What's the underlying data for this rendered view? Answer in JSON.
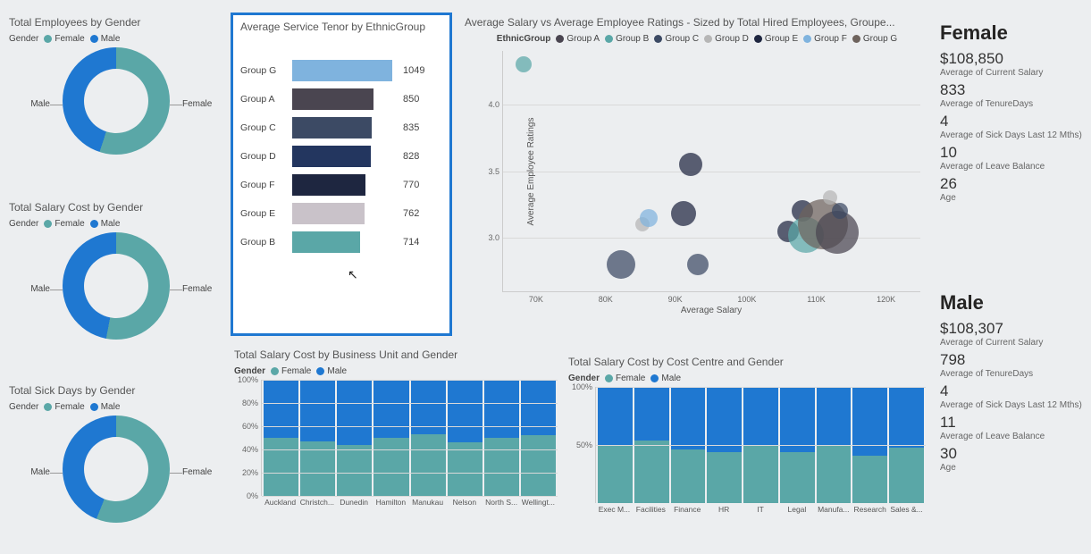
{
  "palette": {
    "female": "#5aa7a7",
    "male": "#1f78d1",
    "selection_border": "#1f78d1",
    "background": "#eceef0",
    "grid": "#d9d9d9"
  },
  "donuts": [
    {
      "id": "emp-gender",
      "title": "Total Employees by Gender",
      "legend_label": "Gender",
      "female_pct": 55,
      "labels": {
        "left": "Male",
        "right": "Female"
      }
    },
    {
      "id": "salary-gender",
      "title": "Total Salary Cost by Gender",
      "legend_label": "Gender",
      "female_pct": 53,
      "labels": {
        "left": "Male",
        "right": "Female"
      }
    },
    {
      "id": "sick-gender",
      "title": "Total Sick Days by Gender",
      "legend_label": "Gender",
      "female_pct": 56,
      "labels": {
        "left": "Male",
        "right": "Female"
      }
    }
  ],
  "tenor_bar": {
    "title": "Average Service Tenor by EthnicGroup",
    "max": 1049,
    "rows": [
      {
        "cat": "Group G",
        "val": 1049,
        "color": "#7fb3de"
      },
      {
        "cat": "Group A",
        "val": 850,
        "color": "#4a4550"
      },
      {
        "cat": "Group C",
        "val": 835,
        "color": "#3c4a64"
      },
      {
        "cat": "Group D",
        "val": 828,
        "color": "#23365f"
      },
      {
        "cat": "Group F",
        "val": 770,
        "color": "#1e2640"
      },
      {
        "cat": "Group E",
        "val": 762,
        "color": "#c9c2c9"
      },
      {
        "cat": "Group B",
        "val": 714,
        "color": "#5aa7a7"
      }
    ]
  },
  "scatter": {
    "title": "Average Salary vs Average Employee Ratings - Sized by Total Hired Employees, Groupe...",
    "legend_label": "EthnicGroup",
    "legend": [
      {
        "label": "Group A",
        "color": "#4a4550"
      },
      {
        "label": "Group B",
        "color": "#5aa7a7"
      },
      {
        "label": "Group C",
        "color": "#3c4a64"
      },
      {
        "label": "Group D",
        "color": "#b6b6b6"
      },
      {
        "label": "Group E",
        "color": "#1e2640"
      },
      {
        "label": "Group F",
        "color": "#7fb3de"
      },
      {
        "label": "Group G",
        "color": "#6e635d"
      }
    ],
    "x": {
      "label": "Average Salary",
      "min": 65000,
      "max": 125000,
      "ticks": [
        70000,
        80000,
        90000,
        100000,
        110000,
        120000
      ],
      "tick_labels": [
        "70K",
        "80K",
        "90K",
        "100K",
        "110K",
        "120K"
      ]
    },
    "y": {
      "label": "Average Employee Ratings",
      "min": 2.6,
      "max": 4.4,
      "ticks": [
        3.0,
        3.5,
        4.0
      ]
    },
    "points": [
      {
        "x": 68000,
        "y": 4.3,
        "r": 9,
        "color": "#5aa7a7"
      },
      {
        "x": 82000,
        "y": 2.8,
        "r": 16,
        "color": "#3c4a64"
      },
      {
        "x": 85000,
        "y": 3.1,
        "r": 8,
        "color": "#b6b6b6"
      },
      {
        "x": 86000,
        "y": 3.15,
        "r": 10,
        "color": "#7fb3de"
      },
      {
        "x": 91000,
        "y": 3.18,
        "r": 14,
        "color": "#1e2640"
      },
      {
        "x": 92000,
        "y": 3.55,
        "r": 13,
        "color": "#1e2640"
      },
      {
        "x": 93000,
        "y": 2.8,
        "r": 12,
        "color": "#3c4a64"
      },
      {
        "x": 106000,
        "y": 3.05,
        "r": 12,
        "color": "#1e2640"
      },
      {
        "x": 108000,
        "y": 3.2,
        "r": 12,
        "color": "#1e2640"
      },
      {
        "x": 108500,
        "y": 3.02,
        "r": 20,
        "color": "#5aa7a7"
      },
      {
        "x": 111000,
        "y": 3.1,
        "r": 28,
        "color": "#6e635d"
      },
      {
        "x": 113000,
        "y": 3.04,
        "r": 24,
        "color": "#4a4550"
      },
      {
        "x": 113500,
        "y": 3.2,
        "r": 9,
        "color": "#3c4a64"
      },
      {
        "x": 112000,
        "y": 3.3,
        "r": 8,
        "color": "#b6b6b6"
      }
    ]
  },
  "stack_bu": {
    "title": "Total Salary Cost by Business Unit and Gender",
    "legend_label": "Gender",
    "yticks": [
      "0%",
      "20%",
      "40%",
      "60%",
      "80%",
      "100%"
    ],
    "cats": [
      "Auckland",
      "Christch...",
      "Dunedin",
      "Hamilton",
      "Manukau",
      "Nelson",
      "North S...",
      "Wellingt..."
    ],
    "female_pct": [
      50,
      47,
      44,
      50,
      53,
      46,
      50,
      52
    ]
  },
  "stack_cc": {
    "title": "Total Salary Cost by Cost Centre and Gender",
    "legend_label": "Gender",
    "yticks": [
      "50%",
      "100%"
    ],
    "cats": [
      "Exec M...",
      "Facilities",
      "Finance",
      "HR",
      "IT",
      "Legal",
      "Manufa...",
      "Research",
      "Sales &..."
    ],
    "female_pct": [
      49,
      54,
      46,
      44,
      50,
      44,
      50,
      41,
      48
    ]
  },
  "kpi": {
    "female": {
      "heading": "Female",
      "rows": [
        {
          "val": "$108,850",
          "lbl": "Average of Current Salary"
        },
        {
          "val": "833",
          "lbl": "Average of TenureDays"
        },
        {
          "val": "4",
          "lbl": "Average of Sick Days Last 12 Mths)"
        },
        {
          "val": "10",
          "lbl": "Average of Leave Balance"
        },
        {
          "val": "26",
          "lbl": "Age"
        }
      ]
    },
    "male": {
      "heading": "Male",
      "rows": [
        {
          "val": "$108,307",
          "lbl": "Average of Current Salary"
        },
        {
          "val": "798",
          "lbl": "Average of TenureDays"
        },
        {
          "val": "4",
          "lbl": "Average of Sick Days Last 12 Mths)"
        },
        {
          "val": "11",
          "lbl": "Average of Leave Balance"
        },
        {
          "val": "30",
          "lbl": "Age"
        }
      ]
    }
  }
}
